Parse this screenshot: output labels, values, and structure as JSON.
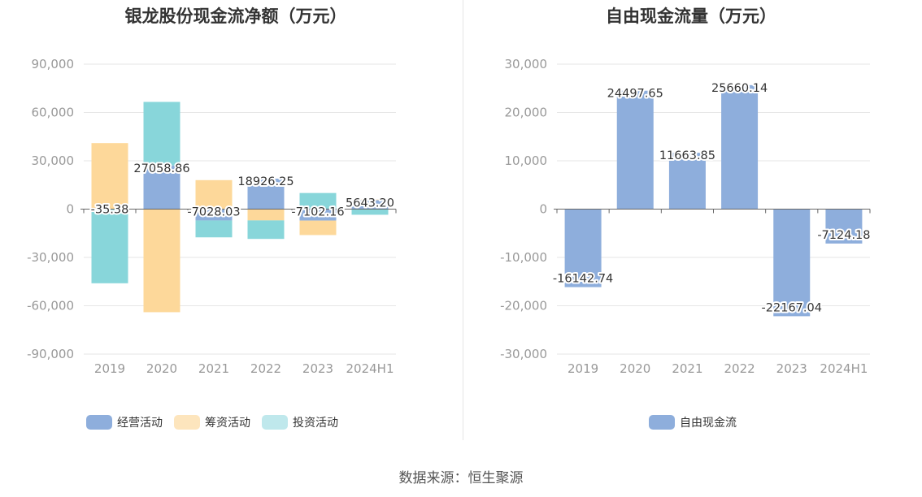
{
  "source": "数据来源：恒生聚源",
  "chart_data": [
    {
      "type": "bar",
      "stacked": true,
      "title": "银龙股份现金流净额（万元）",
      "categories": [
        "2019",
        "2020",
        "2021",
        "2022",
        "2023",
        "2024H1"
      ],
      "ylim": [
        -90000,
        90000
      ],
      "yticks": [
        "90,000",
        "60,000",
        "30,000",
        "0",
        "-30,000",
        "-60,000",
        "-90,000"
      ],
      "ytick_values": [
        90000,
        60000,
        30000,
        0,
        -30000,
        -60000,
        -90000
      ],
      "grid": true,
      "legend_position": "bottom",
      "series": [
        {
          "name": "经营活动",
          "color": "#8eaedc",
          "legend_color": "#8eaedc",
          "values": [
            -35.38,
            27058.86,
            -7028.03,
            18926.25,
            -7102.16,
            5643.2
          ]
        },
        {
          "name": "筹资活动",
          "color": "#fdd89a",
          "legend_color": "#fde5bd",
          "values": [
            41000,
            -64000,
            18000,
            -7000,
            -9000,
            300
          ]
        },
        {
          "name": "投资活动",
          "color": "#88d6da",
          "legend_color": "#bfe8ec",
          "values": [
            -46000,
            39500,
            -10500,
            -11500,
            10000,
            -3500
          ]
        }
      ],
      "data_labels": [
        "-35.38",
        "27058.86",
        "-7028.03",
        "18926.25",
        "-7102.16",
        "5643.20"
      ]
    },
    {
      "type": "bar",
      "title": "自由现金流量（万元）",
      "categories": [
        "2019",
        "2020",
        "2021",
        "2022",
        "2023",
        "2024H1"
      ],
      "ylim": [
        -30000,
        30000
      ],
      "yticks": [
        "30,000",
        "20,000",
        "10,000",
        "0",
        "-10,000",
        "-20,000",
        "-30,000"
      ],
      "ytick_values": [
        30000,
        20000,
        10000,
        0,
        -10000,
        -20000,
        -30000
      ],
      "grid": true,
      "legend_position": "bottom",
      "series": [
        {
          "name": "自由现金流",
          "color": "#8eaedc",
          "legend_color": "#8eaedc",
          "values": [
            -16142.74,
            24497.65,
            11663.85,
            25660.14,
            -22167.04,
            -7124.18
          ]
        }
      ],
      "data_labels": [
        "-16142.74",
        "24497.65",
        "11663.85",
        "25660.14",
        "-22167.04",
        "-7124.18"
      ]
    }
  ]
}
